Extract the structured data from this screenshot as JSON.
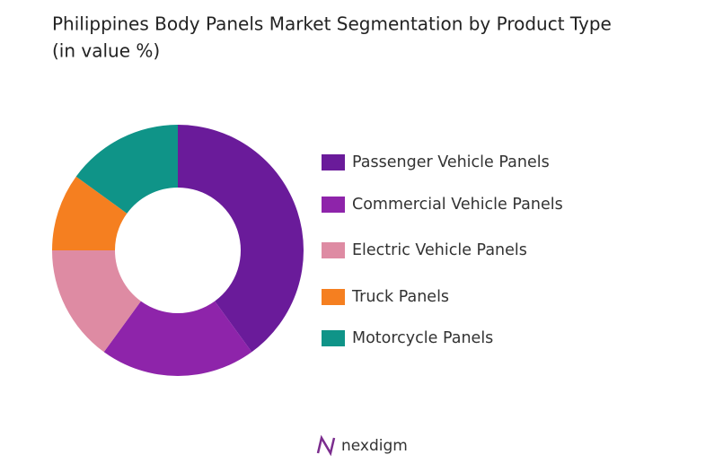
{
  "chart_data": {
    "type": "donut",
    "title": "Philippines Body Panels Market Segmentation by Product Type",
    "subtitle": "(in value %)",
    "categories": [
      "Passenger Vehicle Panels",
      "Commercial Vehicle Panels",
      "Electric Vehicle Panels",
      "Truck Panels",
      "Motorcycle Panels"
    ],
    "values": [
      40,
      20,
      15,
      10,
      15
    ],
    "colors": [
      "#6a1b9a",
      "#8e24aa",
      "#de8ba3",
      "#f57f20",
      "#0f9488"
    ],
    "legend": "right"
  },
  "brand": "nexdigm"
}
